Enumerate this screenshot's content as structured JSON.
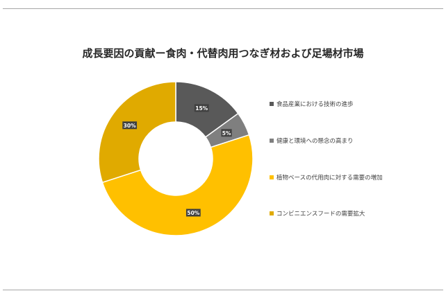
{
  "chart_data": {
    "type": "pie",
    "variant": "donut",
    "title": "成長要因の貢献ー食肉・代替肉用つなぎ材および足場材市場",
    "categories": [
      "食品産業における技術の進歩",
      "健康と環境への懸念の高まり",
      "植物ベースの代用肉に対する需要の増加",
      "コンビニエンスフードの需要拡大"
    ],
    "values": [
      15,
      5,
      50,
      30
    ],
    "data_labels": [
      "15%",
      "5%",
      "50%",
      "30%"
    ],
    "colors": [
      "#595959",
      "#7f7f7f",
      "#ffc000",
      "#e0aa00"
    ],
    "legend_position": "right"
  }
}
